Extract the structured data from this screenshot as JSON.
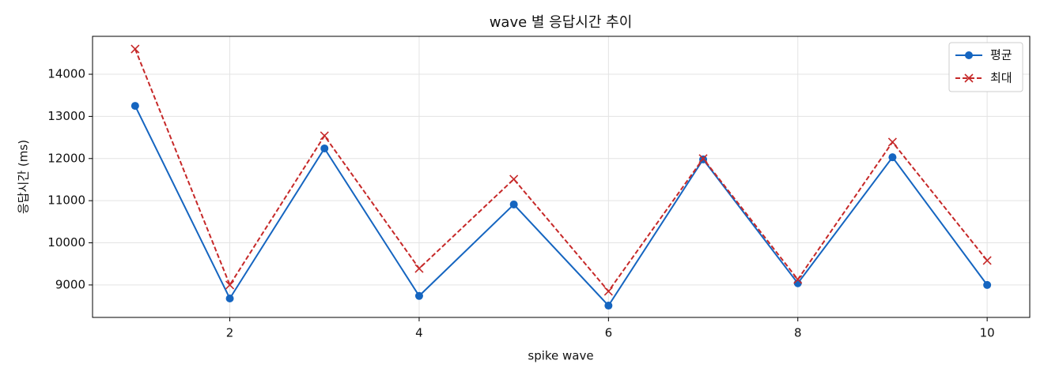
{
  "chart_data": {
    "type": "line",
    "title": "wave 별 응답시간 추이",
    "x_label": "spike wave",
    "y_label": "응답시간 (ms)",
    "x": [
      1,
      2,
      3,
      4,
      5,
      6,
      7,
      8,
      9,
      10
    ],
    "series": [
      {
        "name": "평균",
        "color": "#1565c0",
        "marker": "circle",
        "dash": "solid",
        "values": [
          13250,
          8680,
          12240,
          8740,
          10910,
          8510,
          11980,
          9040,
          12030,
          9000
        ]
      },
      {
        "name": "최대",
        "color": "#c62828",
        "marker": "x",
        "dash": "dashed",
        "values": [
          14600,
          9000,
          12540,
          9390,
          11510,
          8850,
          12000,
          9130,
          12390,
          9580
        ]
      }
    ],
    "xlim": [
      0.55,
      10.45
    ],
    "xticks": [
      2,
      4,
      6,
      8,
      10
    ],
    "ylim": [
      8230,
      14900
    ],
    "yticks": [
      9000,
      10000,
      11000,
      12000,
      13000,
      14000
    ],
    "grid": true,
    "legend": "upper right"
  }
}
